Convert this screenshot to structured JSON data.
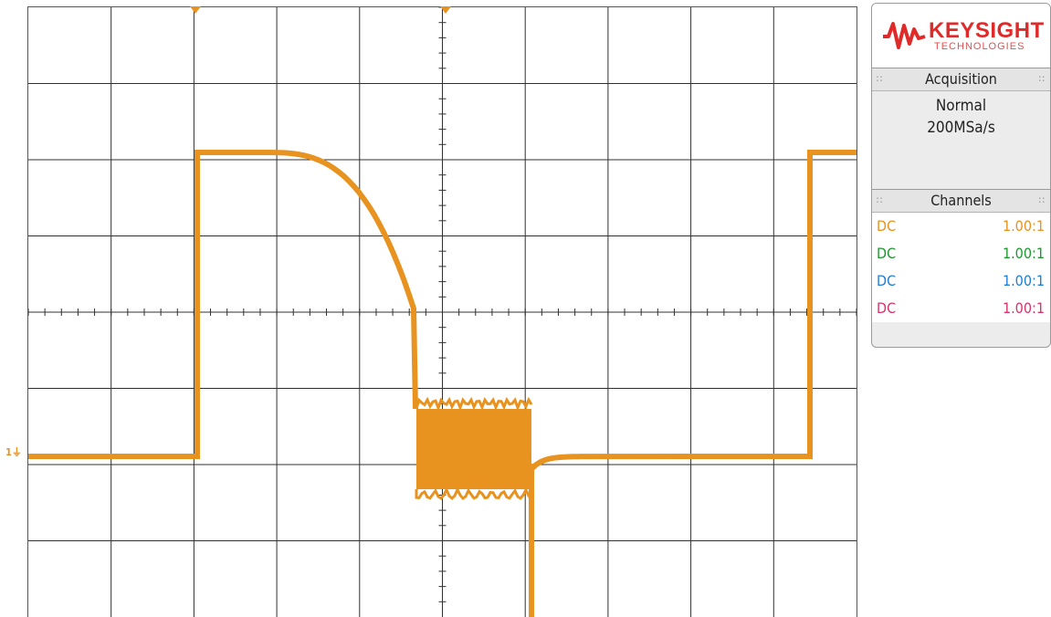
{
  "scope": {
    "grid": {
      "divisions_x": 10,
      "divisions_y": 8,
      "grid_color": "#303030",
      "trace_color": "#e8921f"
    },
    "channel_marker": "1",
    "ground_icon": "ground-icon",
    "trigger_icons": [
      "trigger-marker-icon",
      "time-reference-icon"
    ]
  },
  "panel": {
    "logo_text": "KEYSIGHT",
    "logo_sub": "TECHNOLOGIES",
    "acquisition": {
      "header": "Acquisition",
      "mode": "Normal",
      "rate": "200MSa/s"
    },
    "channels": {
      "header": "Channels",
      "rows": [
        {
          "coupling": "DC",
          "ratio": "1.00:1",
          "color": "#e8921f"
        },
        {
          "coupling": "DC",
          "ratio": "1.00:1",
          "color": "#1d9a2e"
        },
        {
          "coupling": "DC",
          "ratio": "1.00:1",
          "color": "#1f7fd6"
        },
        {
          "coupling": "DC",
          "ratio": "1.00:1",
          "color": "#d8336a"
        }
      ]
    }
  }
}
